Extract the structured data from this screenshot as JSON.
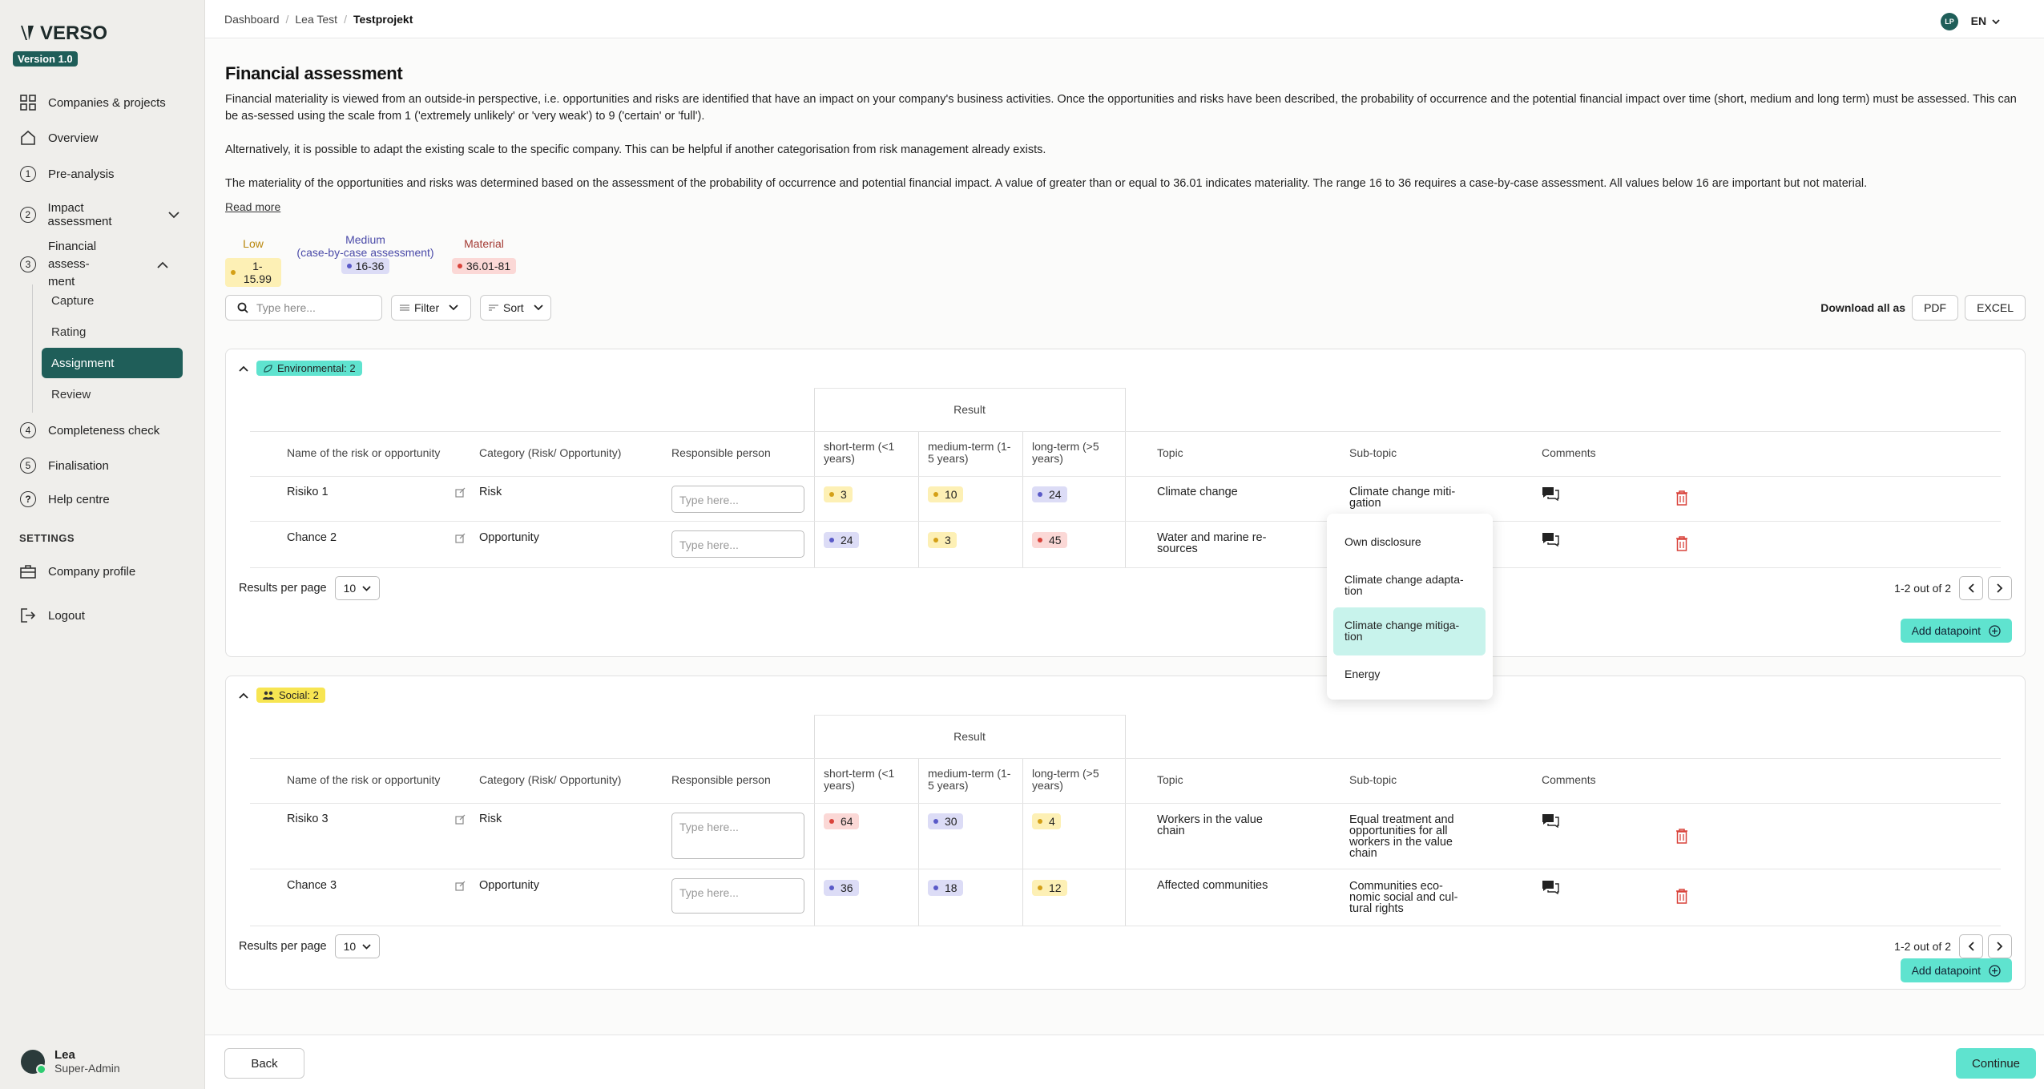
{
  "app": {
    "name": "VERSO",
    "version": "Version 1.0"
  },
  "sidebar": {
    "items": [
      {
        "label": "Companies & projects",
        "icon": "grid-icon"
      },
      {
        "label": "Overview",
        "icon": "home-icon"
      },
      {
        "label": "Pre-analysis",
        "num": "1"
      },
      {
        "label": "Impact assessment",
        "num": "2"
      },
      {
        "label": "Financial assess-\nment",
        "num": "3"
      },
      {
        "label": "Completeness check",
        "num": "4"
      },
      {
        "label": "Finalisation",
        "num": "5"
      },
      {
        "label": "Help centre",
        "icon": "help-icon"
      }
    ],
    "sub_items": [
      "Capture",
      "Rating",
      "Assignment",
      "Review"
    ],
    "settings_label": "SETTINGS",
    "company_profile": "Company profile",
    "logout": "Logout",
    "user": {
      "name": "Lea",
      "role": "Super-Admin"
    }
  },
  "topbar": {
    "breadcrumb": [
      "Dashboard",
      "Lea Test",
      "Testprojekt"
    ],
    "avatar": "LP",
    "lang": "EN"
  },
  "page": {
    "title": "Financial assessment",
    "para1": "Financial materiality is viewed from an outside-in perspective, i.e. opportunities and risks are identified that have an impact on your company's business activities. Once the opportunities and risks have been described, the probability of occurrence and the potential financial impact over time (short, medium and long term) must be assessed. This can be as-sessed using the scale from 1 ('extremely unlikely' or 'very weak') to 9 ('certain' or 'full').",
    "para2": "Alternatively, it is possible to adapt the existing scale to the specific company. This can be helpful if another categorisation from risk management already exists.",
    "para3": "The materiality of the opportunities and risks was determined based on the assessment of the probability of occurrence and potential financial impact. A value of greater than or equal to 36.01 indicates materiality. The range 16 to 36 requires a case-by-case assessment. All values below 16 are important but not material.",
    "read_more": "Read more",
    "legend": [
      {
        "label": "Low",
        "range": "1-15.99",
        "color": "#b8860b"
      },
      {
        "label": "Medium\n(case-by-case assessment)",
        "range": "16-36",
        "color": "#4a4aa8"
      },
      {
        "label": "Material",
        "range": "36.01-81",
        "color": "#a33a33"
      }
    ],
    "search_placeholder": "Type here...",
    "filter": "Filter",
    "sort": "Sort",
    "download_label": "Download all as",
    "pdf": "PDF",
    "excel": "EXCEL"
  },
  "table_headers": {
    "result": "Result",
    "name": "Name of the risk or opportunity",
    "category": "Category (Risk/ Opportunity)",
    "responsible": "Responsible person",
    "short": "short-term (<1 years)",
    "medium": "medium-term (1-5 years)",
    "long": "long-term (>5 years)",
    "topic": "Topic",
    "subtopic": "Sub-topic",
    "comments": "Comments"
  },
  "groups": [
    {
      "tag": "Environmental: 2",
      "rows": [
        {
          "name": "Risiko 1",
          "category": "Risk",
          "placeholder": "Type here...",
          "short": "3",
          "medium": "10",
          "long": "24",
          "topic": "Climate change",
          "subtopic": "Climate change miti-\ngation"
        },
        {
          "name": "Chance 2",
          "category": "Opportunity",
          "placeholder": "Type here...",
          "short": "24",
          "medium": "3",
          "long": "45",
          "topic": "Water and marine re-\nsources",
          "subtopic": ""
        }
      ],
      "rpp_label": "Results per page",
      "rpp_value": "10",
      "pager_text": "1-2 out of 2",
      "add_label": "Add datapoint"
    },
    {
      "tag": "Social: 2",
      "rows": [
        {
          "name": "Risiko 3",
          "category": "Risk",
          "placeholder": "Type here...",
          "short": "64",
          "medium": "30",
          "long": "4",
          "topic": "Workers in the value\nchain",
          "subtopic": "Equal treatment and\nopportunities for all\n workers in the value\nchain"
        },
        {
          "name": "Chance 3",
          "category": "Opportunity",
          "placeholder": "Type here...",
          "short": "36",
          "medium": "18",
          "long": "12",
          "topic": "Affected communities",
          "subtopic": "Communities eco-\nnomic social and cul-\ntural rights"
        }
      ],
      "rpp_label": "Results per page",
      "rpp_value": "10",
      "pager_text": "1-2 out of 2",
      "add_label": "Add datapoint"
    }
  ],
  "dropdown": {
    "options": [
      "Own disclosure",
      "Climate change adapta-\ntion",
      "Climate change mitiga-\ntion",
      "Energy"
    ],
    "selected": "Climate change mitiga-\ntion"
  },
  "footer": {
    "back": "Back",
    "continue": "Continue"
  }
}
